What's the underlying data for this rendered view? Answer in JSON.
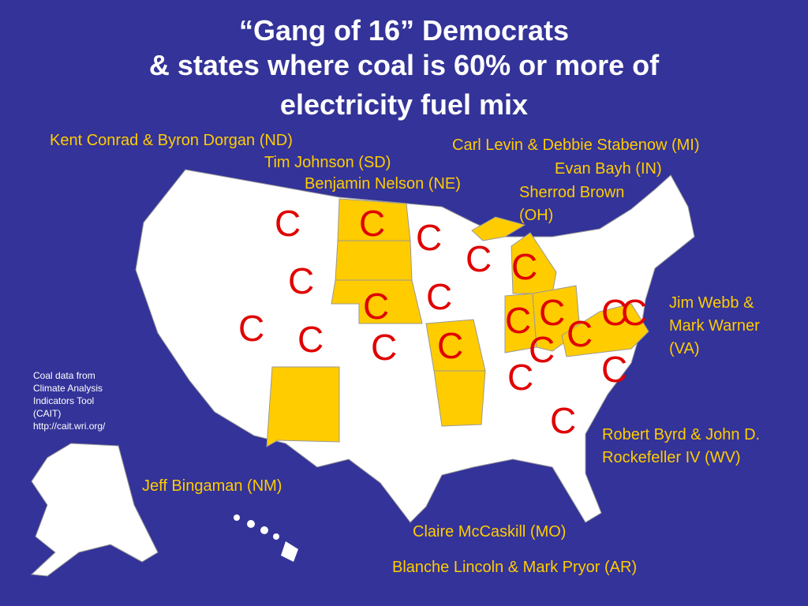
{
  "title": [
    "“Gang of 16” Democrats",
    "& states where coal is 60% or more of",
    "electricity fuel mix"
  ],
  "senators": [
    [
      "Kent Conrad & Byron Dorgan (ND)"
    ],
    [
      "Tim Johnson (SD)"
    ],
    [
      "Benjamin Nelson (NE)"
    ],
    [
      "Carl Levin & Debbie Stabenow (MI)"
    ],
    [
      "Evan Bayh (IN)"
    ],
    [
      "Sherrod Brown",
      "(OH)"
    ],
    [
      "Jim Webb &",
      "Mark Warner",
      "(VA)"
    ],
    [
      "Robert Byrd & John D.",
      "Rockefeller IV (WV)"
    ],
    [
      "Jeff Bingaman (NM)"
    ],
    [
      "Claire McCaskill (MO)"
    ],
    [
      "Blanche Lincoln & Mark Pryor (AR)"
    ]
  ],
  "source_note": [
    "Coal data from",
    "Climate Analysis",
    "Indicators Tool",
    "(CAIT)",
    "http://cait.wri.org/"
  ],
  "coal_markers": [
    "C",
    "C",
    "C",
    "C",
    "C",
    "C",
    "C",
    "C",
    "C",
    "C",
    "C",
    "C",
    "C",
    "C",
    "C",
    "C",
    "C",
    "C",
    "C",
    "C",
    "C"
  ]
}
